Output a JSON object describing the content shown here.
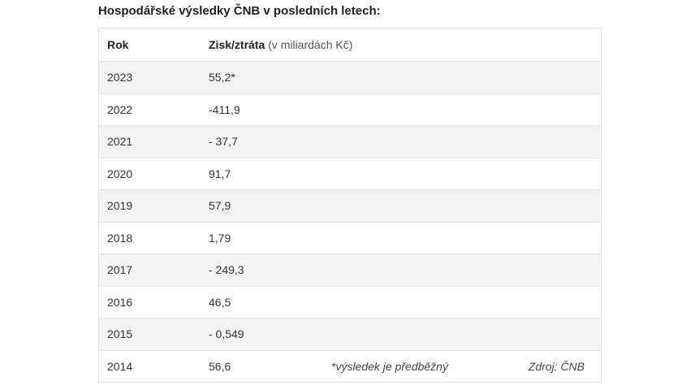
{
  "title": "Hospodářské výsledky ČNB v posledních letech:",
  "table": {
    "header": {
      "year": "Rok",
      "value": "Zisk/ztráta",
      "unit": "(v miliardách Kč)"
    },
    "rows": [
      [
        "2023",
        "55,2*"
      ],
      [
        "2022",
        "-411,9"
      ],
      [
        "2021",
        "- 37,7"
      ],
      [
        "2020",
        "91,7"
      ],
      [
        "2019",
        "57,9"
      ],
      [
        "2018",
        "1,79"
      ],
      [
        "2017",
        "- 249,3"
      ],
      [
        "2016",
        "46,5"
      ],
      [
        "2015",
        "- 0,549"
      ],
      [
        "2014",
        "56,6"
      ]
    ],
    "notes": {
      "preliminary": "*výsledek je předběžný",
      "source": "Zdroj: ČNB"
    }
  }
}
